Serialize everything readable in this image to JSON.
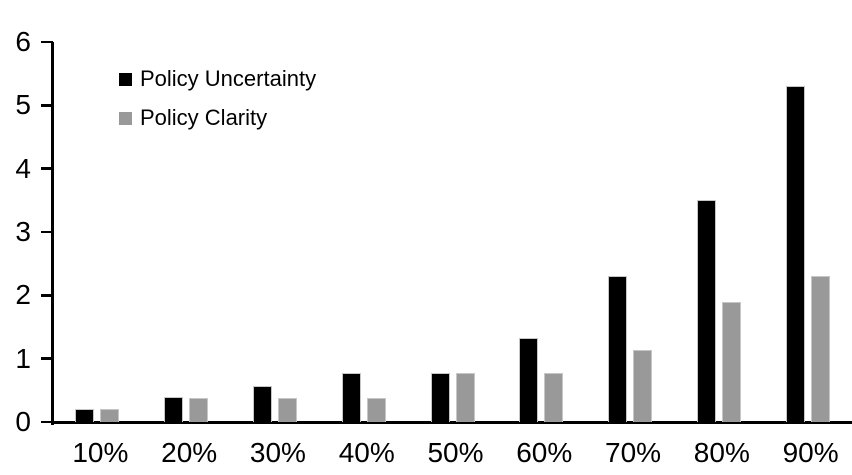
{
  "chart_data": {
    "type": "bar",
    "title": "",
    "xlabel": "",
    "ylabel": "",
    "categories": [
      "10%",
      "20%",
      "30%",
      "40%",
      "50%",
      "60%",
      "70%",
      "80%",
      "90%"
    ],
    "series": [
      {
        "name": "Policy Uncertainty",
        "color": "#000000",
        "values": [
          0.2,
          0.4,
          0.57,
          0.77,
          0.78,
          1.33,
          2.3,
          3.5,
          5.3
        ]
      },
      {
        "name": "Policy Clarity",
        "color": "#999999",
        "values": [
          0.2,
          0.38,
          0.38,
          0.38,
          0.77,
          0.77,
          1.13,
          1.9,
          2.3
        ]
      }
    ],
    "ylim": [
      0,
      6
    ],
    "yticks": [
      0,
      1,
      2,
      3,
      4,
      5,
      6
    ],
    "grid": false,
    "legend_position": "top-left-inside",
    "axis_color": "#000000",
    "background_color": "#ffffff"
  }
}
